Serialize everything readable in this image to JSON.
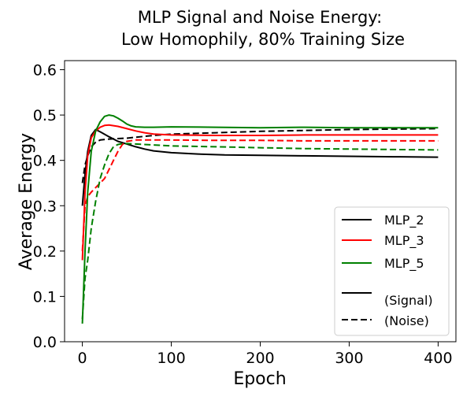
{
  "chart_data": {
    "type": "line",
    "title_lines": [
      "MLP Signal and Noise Energy:",
      "Low Homophily, 80% Training Size"
    ],
    "xlabel": "Epoch",
    "ylabel": "Average Energy",
    "xlim": [
      -20,
      420
    ],
    "ylim": [
      0.0,
      0.62
    ],
    "xticks": [
      0,
      100,
      200,
      300,
      400
    ],
    "yticks": [
      0.0,
      0.1,
      0.2,
      0.3,
      0.4,
      0.5,
      0.6
    ],
    "xtick_labels": [
      "0",
      "100",
      "200",
      "300",
      "400"
    ],
    "ytick_labels": [
      "0.0",
      "0.1",
      "0.2",
      "0.3",
      "0.4",
      "0.5",
      "0.6"
    ],
    "grid": false,
    "legend_position": "lower-right",
    "legend": [
      {
        "label": "MLP_2",
        "color": "#000000",
        "dash": "solid"
      },
      {
        "label": "MLP_3",
        "color": "#ff0000",
        "dash": "solid"
      },
      {
        "label": "MLP_5",
        "color": "#008000",
        "dash": "solid"
      },
      {
        "label": "",
        "color": "",
        "dash": "none"
      },
      {
        "label": " (Signal)",
        "color": "#000000",
        "dash": "solid"
      },
      {
        "label": "(Noise)",
        "color": "#000000",
        "dash": "dashed"
      }
    ],
    "series": [
      {
        "name": "MLP_2 (Signal)",
        "color": "#000000",
        "dash": "solid",
        "x": [
          0,
          3,
          6,
          10,
          15,
          20,
          30,
          40,
          50,
          60,
          70,
          80,
          100,
          130,
          160,
          200,
          250,
          300,
          350,
          400
        ],
        "y": [
          0.3,
          0.37,
          0.42,
          0.455,
          0.468,
          0.463,
          0.452,
          0.442,
          0.436,
          0.43,
          0.425,
          0.421,
          0.417,
          0.414,
          0.412,
          0.411,
          0.41,
          0.409,
          0.408,
          0.407
        ]
      },
      {
        "name": "MLP_2 (Noise)",
        "color": "#000000",
        "dash": "dashed",
        "x": [
          0,
          3,
          6,
          10,
          15,
          20,
          30,
          40,
          50,
          60,
          80,
          100,
          150,
          200,
          250,
          300,
          350,
          400
        ],
        "y": [
          0.35,
          0.39,
          0.41,
          0.43,
          0.44,
          0.445,
          0.447,
          0.448,
          0.449,
          0.451,
          0.455,
          0.458,
          0.461,
          0.464,
          0.466,
          0.468,
          0.469,
          0.47
        ]
      },
      {
        "name": "MLP_3 (Signal)",
        "color": "#ff0000",
        "dash": "solid",
        "x": [
          0,
          3,
          6,
          10,
          15,
          20,
          25,
          30,
          40,
          50,
          60,
          70,
          80,
          100,
          150,
          200,
          250,
          300,
          350,
          400
        ],
        "y": [
          0.18,
          0.33,
          0.41,
          0.45,
          0.465,
          0.473,
          0.477,
          0.478,
          0.475,
          0.47,
          0.465,
          0.461,
          0.458,
          0.456,
          0.455,
          0.455,
          0.456,
          0.456,
          0.456,
          0.456
        ]
      },
      {
        "name": "MLP_3 (Noise)",
        "color": "#ff0000",
        "dash": "dashed",
        "x": [
          0,
          3,
          6,
          10,
          15,
          20,
          25,
          30,
          35,
          40,
          45,
          50,
          60,
          80,
          100,
          150,
          200,
          250,
          300,
          350,
          400
        ],
        "y": [
          0.2,
          0.3,
          0.32,
          0.33,
          0.34,
          0.35,
          0.36,
          0.38,
          0.4,
          0.42,
          0.435,
          0.442,
          0.445,
          0.445,
          0.445,
          0.444,
          0.444,
          0.443,
          0.443,
          0.443,
          0.443
        ]
      },
      {
        "name": "MLP_5 (Signal)",
        "color": "#008000",
        "dash": "solid",
        "x": [
          0,
          3,
          6,
          10,
          15,
          20,
          25,
          30,
          35,
          40,
          45,
          50,
          55,
          60,
          70,
          80,
          100,
          150,
          200,
          250,
          300,
          350,
          400
        ],
        "y": [
          0.04,
          0.2,
          0.33,
          0.42,
          0.465,
          0.485,
          0.497,
          0.5,
          0.498,
          0.493,
          0.487,
          0.48,
          0.476,
          0.474,
          0.473,
          0.473,
          0.474,
          0.473,
          0.472,
          0.473,
          0.472,
          0.472,
          0.472
        ]
      },
      {
        "name": "MLP_5 (Noise)",
        "color": "#008000",
        "dash": "dashed",
        "x": [
          0,
          3,
          6,
          10,
          15,
          20,
          25,
          30,
          35,
          40,
          45,
          50,
          60,
          80,
          100,
          150,
          200,
          250,
          300,
          350,
          400
        ],
        "y": [
          0.05,
          0.14,
          0.18,
          0.25,
          0.31,
          0.36,
          0.39,
          0.415,
          0.43,
          0.435,
          0.437,
          0.437,
          0.436,
          0.434,
          0.432,
          0.43,
          0.428,
          0.426,
          0.425,
          0.424,
          0.423
        ]
      }
    ]
  }
}
